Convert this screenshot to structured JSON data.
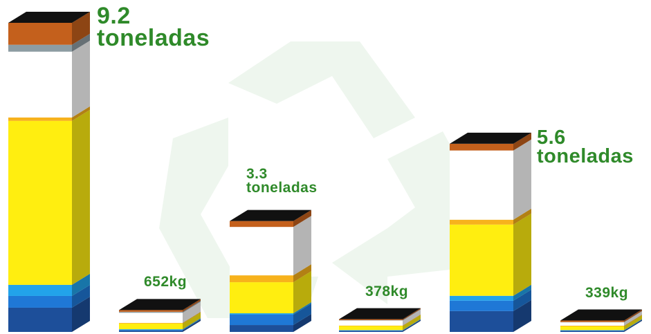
{
  "chart_data": {
    "type": "stacked-bar-3d",
    "series": [
      {
        "color": "#1d4f9a",
        "values": [
          721,
          40,
          205,
          30,
          620,
          30
        ]
      },
      {
        "color": "#1f78d6",
        "values": [
          350,
          20,
          310,
          15,
          310,
          15
        ]
      },
      {
        "color": "#22a3ea",
        "values": [
          330,
          20,
          40,
          10,
          145,
          10
        ]
      },
      {
        "color": "#ffee10",
        "values": [
          4880,
          170,
          925,
          120,
          2120,
          110
        ]
      },
      {
        "color": "#f7b21c",
        "values": [
          103,
          20,
          205,
          15,
          145,
          20
        ]
      },
      {
        "color": "#ffffff",
        "values": [
          1957,
          300,
          1440,
          150,
          2060,
          100
        ]
      },
      {
        "color": "#8d9ca2",
        "values": [
          206,
          30,
          0,
          10,
          0,
          10
        ]
      },
      {
        "color": "#c4601c",
        "values": [
          653,
          52,
          175,
          28,
          200,
          44
        ]
      }
    ],
    "totals": [
      9200,
      652,
      3300,
      378,
      5600,
      339
    ],
    "total_labels": [
      "9.2 toneladas",
      "652kg",
      "3.3 toneladas",
      "378kg",
      "5.6 toneladas",
      "339kg"
    ]
  }
}
